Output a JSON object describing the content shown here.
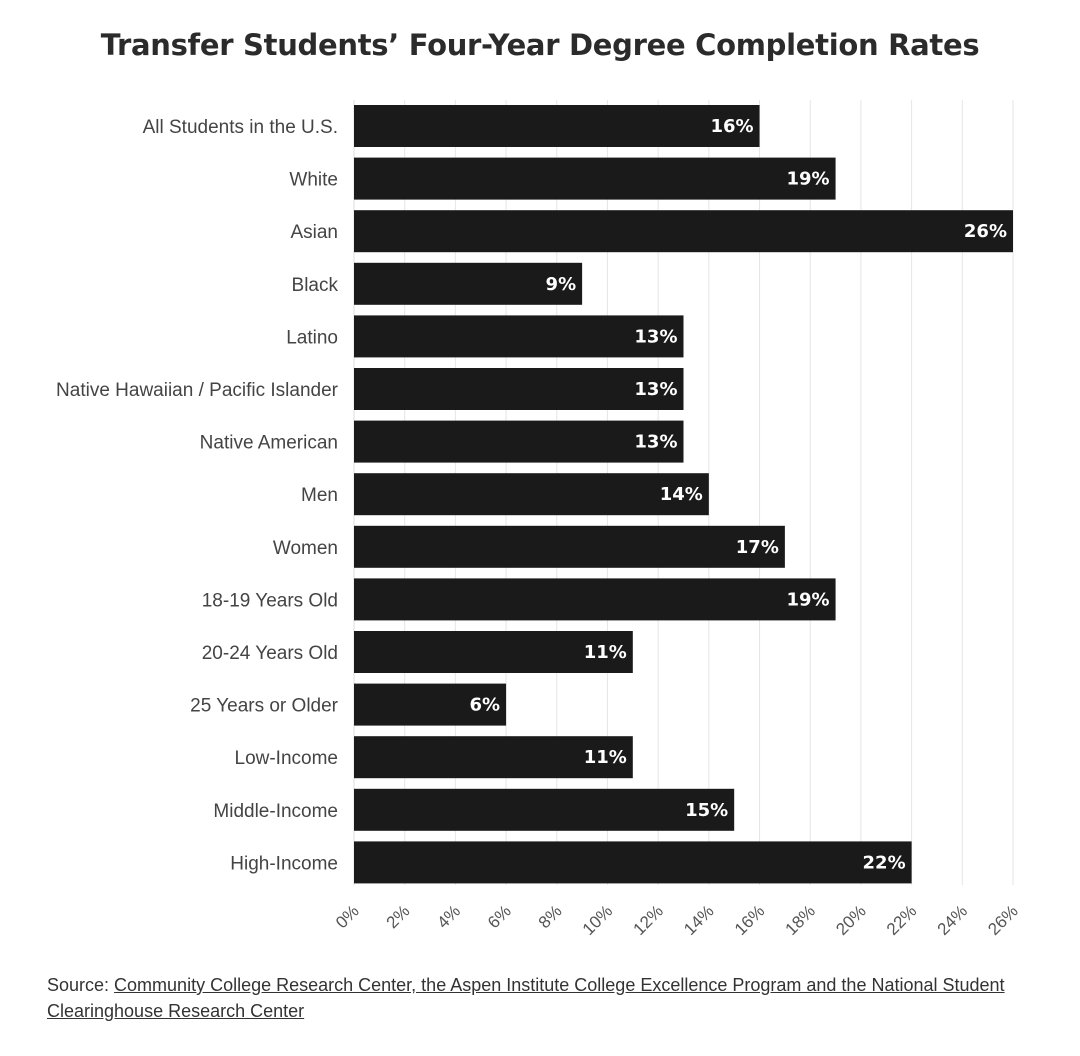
{
  "chart_data": {
    "type": "bar",
    "orientation": "horizontal",
    "title": "Transfer Students’ Four-Year Degree Completion Rates",
    "categories": [
      "All Students in the U.S.",
      "White",
      "Asian",
      "Black",
      "Latino",
      "Native Hawaiian / Pacific Islander",
      "Native American",
      "Men",
      "Women",
      "18-19 Years Old",
      "20-24 Years Old",
      "25 Years or Older",
      "Low-Income",
      "Middle-Income",
      "High-Income"
    ],
    "values": [
      16,
      19,
      26,
      9,
      13,
      13,
      13,
      14,
      17,
      19,
      11,
      6,
      11,
      15,
      22
    ],
    "value_labels": [
      "16%",
      "19%",
      "26%",
      "9%",
      "13%",
      "13%",
      "13%",
      "14%",
      "17%",
      "19%",
      "11%",
      "6%",
      "11%",
      "15%",
      "22%"
    ],
    "xlim": [
      0,
      26
    ],
    "xticks": [
      "0%",
      "2%",
      "4%",
      "6%",
      "8%",
      "10%",
      "12%",
      "14%",
      "16%",
      "18%",
      "20%",
      "22%",
      "24%",
      "26%"
    ],
    "grid": true,
    "bar_color": "#1b1a1a",
    "label_color": "#ffffff"
  },
  "source": {
    "prefix": "Source: ",
    "link_text": "Community College Research Center, the Aspen Institute College Excellence Program and the National Student Clearinghouse Research Center"
  }
}
